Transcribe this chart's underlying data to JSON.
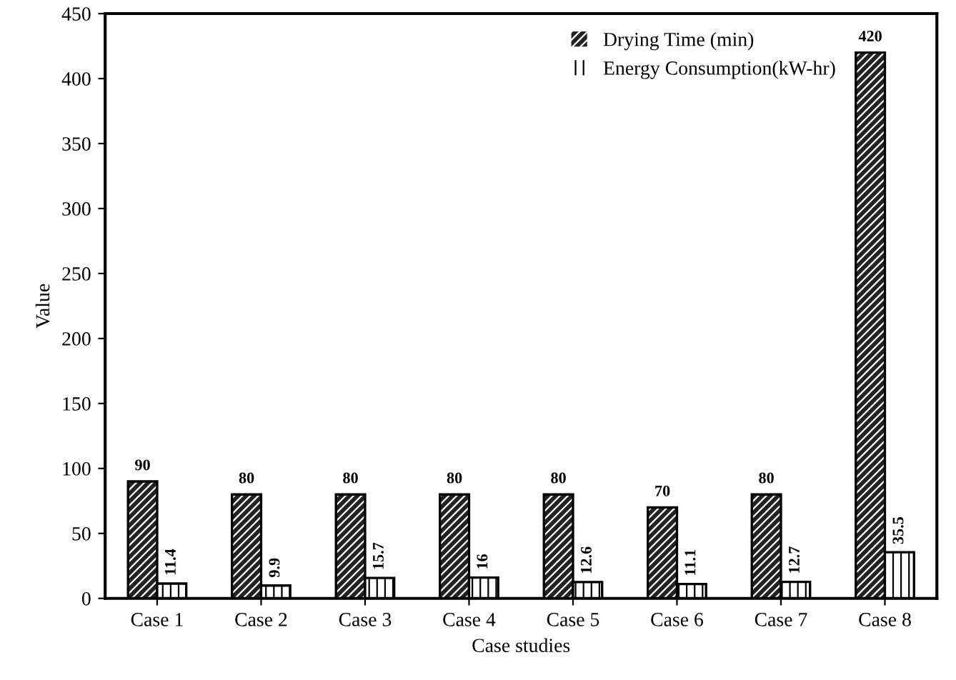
{
  "chart_data": {
    "type": "bar",
    "xlabel": "Case studies",
    "ylabel": "Value",
    "categories": [
      "Case 1",
      "Case 2",
      "Case 3",
      "Case 4",
      "Case 5",
      "Case 6",
      "Case 7",
      "Case 8"
    ],
    "series": [
      {
        "name": "Drying Time (min)",
        "color": "#222222",
        "values": [
          90,
          80,
          80,
          80,
          80,
          70,
          80,
          420
        ]
      },
      {
        "name": "Energy Consumption(kW-hr)",
        "color": "#ffffff",
        "values": [
          11.4,
          9.9,
          15.7,
          16,
          12.6,
          11.1,
          12.7,
          35.5
        ]
      }
    ],
    "ylim": [
      0,
      450
    ],
    "yticks": [
      0,
      50,
      100,
      150,
      200,
      250,
      300,
      350,
      400,
      450
    ],
    "data_labels": true,
    "legend": "top right",
    "grid": false
  }
}
